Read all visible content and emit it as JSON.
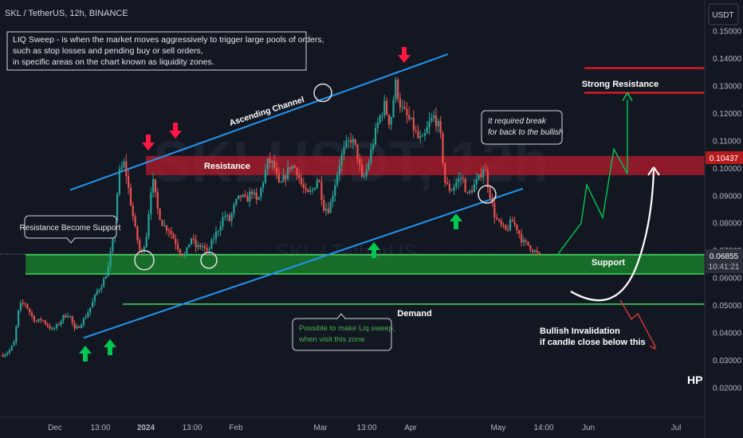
{
  "header": {
    "symbol_title": "SKL / TetherUS, 12h, BINANCE",
    "currency_button": "USDT"
  },
  "watermark": {
    "big": "SKLUSDT, 12h",
    "small": "SKL / TetherUS"
  },
  "colors": {
    "background": "#131722",
    "up_candle": "#26a69a",
    "down_candle": "#ef5350",
    "channel": "#2196f3",
    "zone_green": "#1b8a2e",
    "zone_red": "#b71c2c",
    "price_badge": "#b71c1c",
    "last_price_badge": "#2b2f3a",
    "arrow_up": "#00c853",
    "arrow_down": "#ff1744"
  },
  "chart_data": {
    "type": "candlestick",
    "symbol": "SKL / TetherUS",
    "interval": "12h",
    "exchange": "BINANCE",
    "y_axis": {
      "ticks": [
        "0.15000",
        "0.14000",
        "0.13000",
        "0.12000",
        "0.11000",
        "0.10000",
        "0.09000",
        "0.08000",
        "0.07000",
        "0.06000",
        "0.05000",
        "0.04000",
        "0.03000",
        "0.02000"
      ],
      "tick_values": [
        0.15,
        0.14,
        0.13,
        0.12,
        0.11,
        0.1,
        0.09,
        0.08,
        0.07,
        0.06,
        0.05,
        0.04,
        0.03,
        0.02
      ],
      "range": [
        0.013,
        0.159
      ]
    },
    "x_axis": {
      "ticks": [
        "Dec",
        "13:00",
        "2024",
        "13:00",
        "Feb",
        "Mar",
        "13:00",
        "Apr",
        "May",
        "14:00",
        "Jun",
        "Jul"
      ]
    },
    "price_labels": {
      "resistance_price": "0.10437",
      "last_price": "0.06855",
      "countdown": "10:41:21"
    },
    "levels": {
      "resistance_zone": [
        0.0975,
        0.1045
      ],
      "support_zone": [
        0.0615,
        0.0685
      ],
      "demand_line": 0.0505,
      "strong_resistance_lines": [
        0.1365,
        0.1275
      ]
    },
    "channel": {
      "upper": [
        [
          "Dec 2023",
          0.0921
        ],
        [
          "Apr 2024",
          0.1416
        ]
      ],
      "lower": [
        [
          "Dec 2023",
          0.0382
        ],
        [
          "Apr 2024",
          0.0926
        ]
      ]
    },
    "price_path": [
      0.032,
      0.033,
      0.036,
      0.05,
      0.051,
      0.047,
      0.044,
      0.045,
      0.043,
      0.041,
      0.043,
      0.046,
      0.047,
      0.041,
      0.043,
      0.046,
      0.05,
      0.055,
      0.058,
      0.063,
      0.075,
      0.098,
      0.102,
      0.089,
      0.077,
      0.068,
      0.076,
      0.097,
      0.085,
      0.079,
      0.078,
      0.074,
      0.07,
      0.068,
      0.075,
      0.071,
      0.072,
      0.069,
      0.074,
      0.078,
      0.083,
      0.081,
      0.087,
      0.09,
      0.088,
      0.092,
      0.087,
      0.095,
      0.103,
      0.101,
      0.093,
      0.097,
      0.101,
      0.1,
      0.094,
      0.09,
      0.092,
      0.097,
      0.086,
      0.085,
      0.094,
      0.103,
      0.108,
      0.111,
      0.106,
      0.095,
      0.101,
      0.11,
      0.118,
      0.123,
      0.116,
      0.131,
      0.122,
      0.119,
      0.116,
      0.111,
      0.11,
      0.116,
      0.119,
      0.114,
      0.094,
      0.092,
      0.095,
      0.097,
      0.09,
      0.093,
      0.096,
      0.101,
      0.091,
      0.082,
      0.079,
      0.077,
      0.081,
      0.078,
      0.073,
      0.072,
      0.07,
      0.068
    ],
    "projections": {
      "bullish_path": [
        0.068,
        0.08,
        0.094,
        0.082,
        0.107,
        0.098,
        0.125
      ],
      "invalidation_path": [
        0.052,
        0.045,
        0.047,
        0.035
      ]
    }
  },
  "annotations": {
    "liq_sweep_note": [
      "LIQ Sweep - is when the market moves aggressively to trigger large pools of orders,",
      "such as stop losses and pending buy or sell orders,",
      "in specific areas on the chart known as liquidity zones."
    ],
    "ascending_channel": "Ascending Channel",
    "resistance": "Resistance",
    "support": "Support",
    "demand": "Demand",
    "strong_resistance": "Strong Resistance",
    "resistance_become_support": "Resistance Become Support",
    "break_note": [
      "It required break",
      "for back to the bullish"
    ],
    "liq_zone_note": [
      "Possible to make Liq sweep,",
      "when visit this zone"
    ],
    "invalidation_note": [
      "Bullish Invalidation",
      "if candle close below this"
    ],
    "hp": "HP"
  }
}
